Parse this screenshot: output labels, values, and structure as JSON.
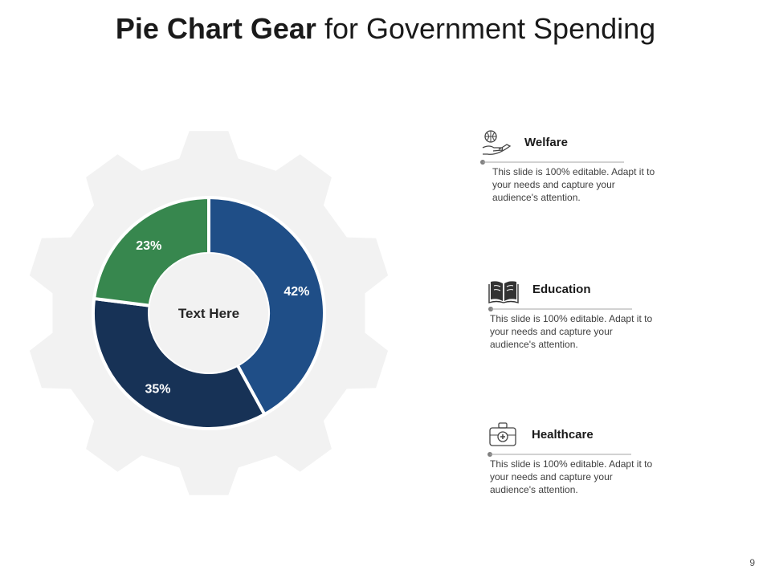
{
  "title": {
    "bold": "Pie Chart Gear",
    "rest": "for Government Spending"
  },
  "chart_data": {
    "type": "pie",
    "center_label": "Text Here",
    "slices": [
      {
        "label": "42%",
        "value": 42,
        "color": "#1f4e87"
      },
      {
        "label": "35%",
        "value": 35,
        "color": "#173256"
      },
      {
        "label": "23%",
        "value": 23,
        "color": "#37874e"
      }
    ],
    "gear_color": "#f2f2f2"
  },
  "items": [
    {
      "icon": "charity-hand-icon",
      "label": "Welfare",
      "description": "This slide is 100% editable. Adapt it to your needs and capture your audience's attention."
    },
    {
      "icon": "book-icon",
      "label": "Education",
      "description": "This slide is 100% editable. Adapt it to your needs and capture your audience's attention."
    },
    {
      "icon": "medical-kit-icon",
      "label": "Healthcare",
      "description": "This slide is 100% editable. Adapt it to your needs and capture your audience's attention."
    }
  ],
  "page_number": "9"
}
